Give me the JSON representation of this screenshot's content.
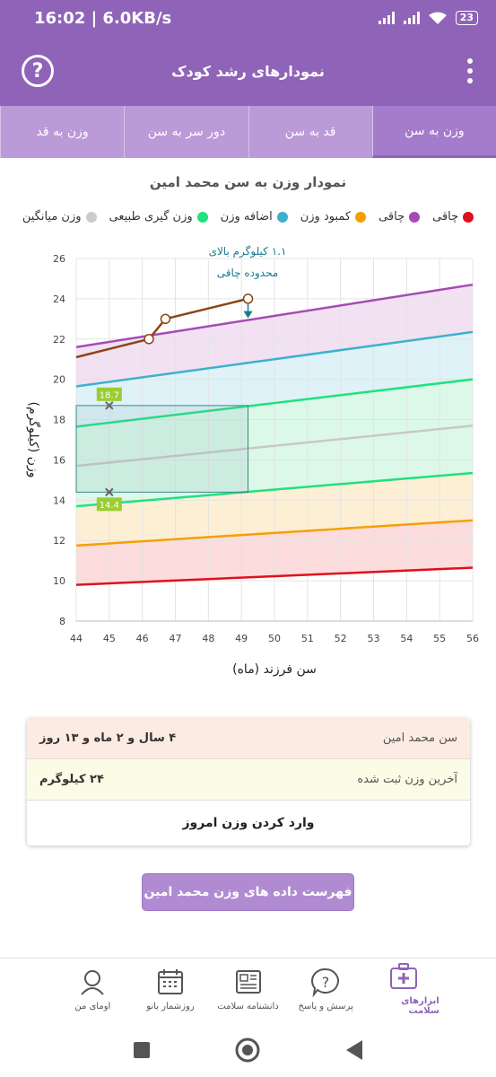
{
  "status": {
    "time": "16:02",
    "speed": "6.0KB/s",
    "battery": "23"
  },
  "header": {
    "title": "نمودارهای رشد کودک"
  },
  "tabs": [
    {
      "label": "وزن به سن",
      "active": true
    },
    {
      "label": "قد به سن",
      "active": false
    },
    {
      "label": "دور سر به سن",
      "active": false
    },
    {
      "label": "وزن به قد",
      "active": false
    }
  ],
  "chart": {
    "title": "نمودار وزن به سن محمد امین",
    "legend": [
      {
        "label": "چاقی",
        "color": "#e0101c"
      },
      {
        "label": "چاقی",
        "color": "#a64ab5"
      },
      {
        "label": "کمبود وزن",
        "color": "#f5a000"
      },
      {
        "label": "اضافه وزن",
        "color": "#3fb0cc"
      },
      {
        "label": "وزن گیری طبیعی",
        "color": "#1ee27e"
      },
      {
        "label": "وزن میانگین",
        "color": "#cccccc"
      }
    ],
    "annotation_line1": "۱.۱ کیلوگرم بالای",
    "annotation_line2": "محدوده چاقی",
    "marker_high": "18.7",
    "marker_low": "14.4"
  },
  "chart_data": {
    "type": "line",
    "xlabel": "سن فرزند (ماه)",
    "ylabel": "وزن (کیلوگرم)",
    "xlim": [
      44,
      56
    ],
    "ylim": [
      8,
      26
    ],
    "xticks": [
      44,
      45,
      46,
      47,
      48,
      49,
      50,
      51,
      52,
      53,
      54,
      55,
      56
    ],
    "yticks": [
      8,
      10,
      12,
      14,
      16,
      18,
      20,
      22,
      24,
      26
    ],
    "reference_lines": [
      {
        "key": "red",
        "color": "#e0101c",
        "from": [
          44,
          9.8
        ],
        "to": [
          56,
          10.65
        ]
      },
      {
        "key": "orange",
        "color": "#f5a000",
        "from": [
          44,
          11.75
        ],
        "to": [
          56,
          13.0
        ]
      },
      {
        "key": "green_low",
        "color": "#1ee27e",
        "from": [
          44,
          13.7
        ],
        "to": [
          56,
          15.35
        ]
      },
      {
        "key": "mean",
        "color": "#c8c8c8",
        "from": [
          44,
          15.7
        ],
        "to": [
          56,
          17.7
        ]
      },
      {
        "key": "green_high",
        "color": "#1ee27e",
        "from": [
          44,
          17.65
        ],
        "to": [
          56,
          20.0
        ]
      },
      {
        "key": "blue",
        "color": "#3fb0cc",
        "from": [
          44,
          19.65
        ],
        "to": [
          56,
          22.35
        ]
      },
      {
        "key": "purple",
        "color": "#a64ab5",
        "from": [
          44,
          21.6
        ],
        "to": [
          56,
          24.7
        ]
      }
    ],
    "child_series": {
      "color": "#8b4513",
      "x": [
        44,
        46.2,
        46.7,
        49.2
      ],
      "y": [
        21.1,
        22.0,
        23.0,
        24.0
      ]
    },
    "normal_range_markers": {
      "x": 45,
      "high": 18.7,
      "low": 14.4
    },
    "current_age_x": 49.2
  },
  "info": {
    "age_label": "سن محمد امین",
    "age_value": "۴ سال و ۲ ماه و ۱۳ روز",
    "weight_label": "آخرین وزن ثبت شده",
    "weight_value": "۲۴ کیلوگرم",
    "enter_weight": "وارد کردن وزن امروز"
  },
  "list_button": "فهرست داده های وزن محمد امین",
  "bottom_nav": [
    {
      "label": "ابزارهای سلامت",
      "icon": "medical-kit-icon",
      "active": true
    },
    {
      "label": "پرسش و پاسخ",
      "icon": "question-bubble-icon",
      "active": false
    },
    {
      "label": "دانشنامه سلامت",
      "icon": "newspaper-icon",
      "active": false
    },
    {
      "label": "روزشمار بانو",
      "icon": "calendar-icon",
      "active": false
    },
    {
      "label": "اومای من",
      "icon": "profile-icon",
      "active": false
    }
  ]
}
